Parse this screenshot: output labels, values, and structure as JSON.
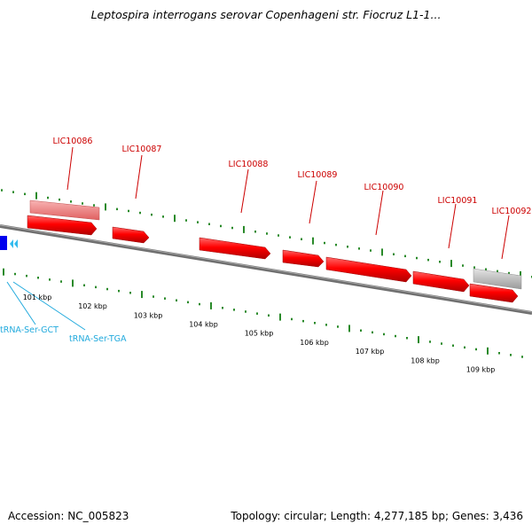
{
  "title": "Leptospira interrogans serovar Copenhageni str. Fiocruz L1-1...",
  "footer": {
    "accession_label": "Accession:",
    "accession": "NC_005823",
    "topology_label": "Topology:",
    "topology": "circular",
    "length_label": "Length:",
    "length": "4,277,185 bp",
    "genes_label": "Genes:",
    "genes": "3,436"
  },
  "genes": [
    {
      "label": "LIC10086"
    },
    {
      "label": "LIC10087"
    },
    {
      "label": "LIC10088"
    },
    {
      "label": "LIC10089"
    },
    {
      "label": "LIC10090"
    },
    {
      "label": "LIC10091"
    },
    {
      "label": "LIC10092"
    }
  ],
  "rnas": [
    {
      "label": "tRNA-Ser-GCT"
    },
    {
      "label": "tRNA-Ser-TGA"
    }
  ],
  "kbp_markers": [
    "101 kbp",
    "102 kbp",
    "103 kbp",
    "104 kbp",
    "105 kbp",
    "106 kbp",
    "107 kbp",
    "108 kbp",
    "109 kbp"
  ],
  "colors": {
    "cds": "#ff0000",
    "cds_pink": "#f08080",
    "pseudo_gray": "#c8c8c8",
    "gene_label": "#cc0000",
    "rna_label": "#22aadd",
    "rna_marker": "#0000ee",
    "backbone": "#777777",
    "tick": "#2a8a2a"
  },
  "icons": {
    "rna_marker": "blue-square-icon",
    "rna_arrows": "double-chevron-left-icon"
  }
}
